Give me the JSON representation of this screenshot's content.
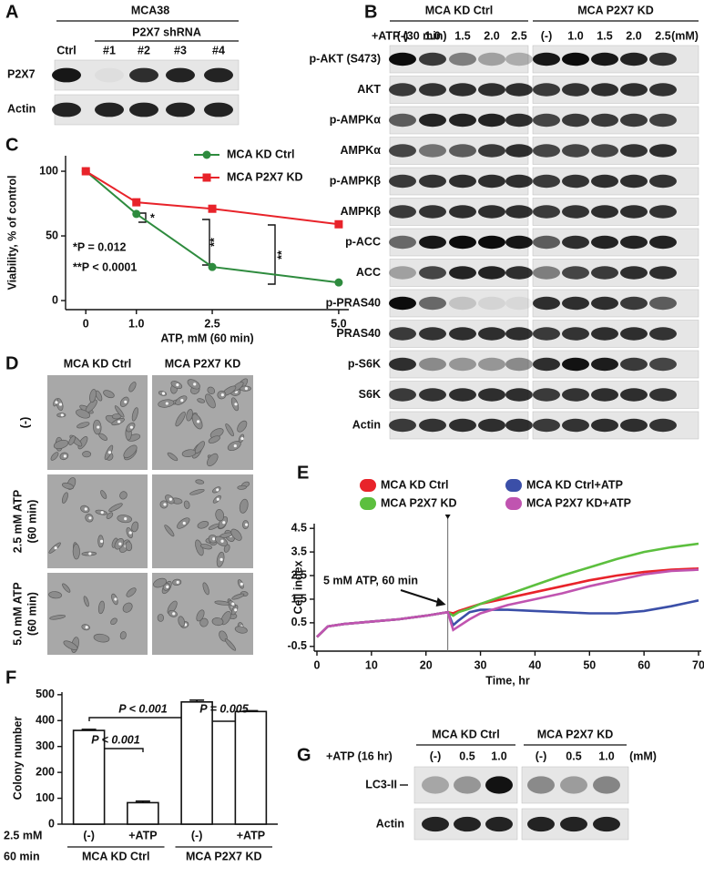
{
  "panel_a": {
    "letter": "A",
    "cell_line": "MCA38",
    "shrna_label": "P2X7 shRNA",
    "lanes": [
      "Ctrl",
      "#1",
      "#2",
      "#3",
      "#4"
    ],
    "rows": [
      "P2X7",
      "Actin"
    ]
  },
  "panel_b": {
    "letter": "B",
    "treatment": "+ATP (30 min)",
    "groups": [
      "MCA KD Ctrl",
      "MCA P2X7 KD"
    ],
    "lanes": [
      "(-)",
      "1.0",
      "1.5",
      "2.0",
      "2.5"
    ],
    "unit": "(mM)",
    "rows": [
      "p-AKT (S473)",
      "AKT",
      "p-AMPKα",
      "AMPKα",
      "p-AMPKβ",
      "AMPKβ",
      "p-ACC",
      "ACC",
      "p-PRAS40",
      "PRAS40",
      "p-S6K",
      "S6K",
      "Actin"
    ]
  },
  "chart_data": [
    {
      "type": "line",
      "letter": "C",
      "xlabel": "ATP, mM (60 min)",
      "ylabel": "Viability, % of control",
      "x": [
        0,
        1,
        2.5,
        5
      ],
      "xlim": [
        -0.4,
        5.2
      ],
      "xticks": [
        0,
        {
          "value": 1,
          "label": "1.0"
        },
        2.5,
        {
          "value": 5,
          "label": "5.0"
        }
      ],
      "ylim": [
        -7,
        112
      ],
      "yticks": [
        0,
        50,
        100
      ],
      "series": [
        {
          "name": "MCA KD Ctrl",
          "color": "#2e8b3e",
          "marker": "circle",
          "values": [
            100,
            67,
            26,
            14
          ]
        },
        {
          "name": "MCA P2X7 KD",
          "color": "#e8232a",
          "marker": "square",
          "values": [
            100,
            76,
            71,
            59
          ]
        }
      ],
      "annotations": [
        "*P = 0.012",
        "**P < 0.0001",
        "*",
        "**",
        "**"
      ]
    },
    {
      "type": "line",
      "letter": "E",
      "xlabel": "Time, hr",
      "ylabel": "Cell index",
      "x": [
        0,
        2,
        5,
        10,
        15,
        20,
        24,
        25,
        26,
        28,
        30,
        35,
        40,
        45,
        50,
        55,
        60,
        65,
        70
      ],
      "xlim": [
        -0.5,
        70.5
      ],
      "xticks": [
        0,
        10,
        20,
        30,
        40,
        50,
        60,
        70
      ],
      "ylim": [
        -0.7,
        4.7
      ],
      "yticks": [
        -0.5,
        0.5,
        1.5,
        2.5,
        3.5,
        4.5
      ],
      "marker_x": 24,
      "annotation": "5 mM ATP, 60 min",
      "series": [
        {
          "name": "MCA KD Ctrl",
          "color": "#e8232a",
          "values": [
            -0.1,
            0.35,
            0.45,
            0.55,
            0.65,
            0.8,
            0.95,
            0.9,
            1.0,
            1.15,
            1.3,
            1.55,
            1.8,
            2.05,
            2.3,
            2.5,
            2.65,
            2.75,
            2.8
          ]
        },
        {
          "name": "MCA P2X7 KD",
          "color": "#5cbf3e",
          "values": [
            -0.1,
            0.35,
            0.45,
            0.55,
            0.65,
            0.8,
            0.95,
            0.8,
            0.95,
            1.1,
            1.3,
            1.7,
            2.1,
            2.5,
            2.85,
            3.2,
            3.5,
            3.7,
            3.85
          ]
        },
        {
          "name": "MCA KD Ctrl+ATP",
          "color": "#3b4fa8",
          "values": [
            -0.1,
            0.35,
            0.45,
            0.55,
            0.65,
            0.8,
            0.95,
            0.4,
            0.6,
            0.95,
            1.05,
            1.05,
            1.0,
            0.95,
            0.9,
            0.9,
            1.0,
            1.2,
            1.45
          ]
        },
        {
          "name": "MCA P2X7 KD+ATP",
          "color": "#c054b0",
          "values": [
            -0.1,
            0.35,
            0.45,
            0.55,
            0.65,
            0.8,
            0.95,
            0.2,
            0.35,
            0.65,
            0.9,
            1.25,
            1.5,
            1.75,
            2.05,
            2.3,
            2.55,
            2.7,
            2.75
          ]
        }
      ]
    },
    {
      "type": "bar",
      "letter": "F",
      "ylabel": "Colony number",
      "categories": [
        "(-)",
        "+ATP",
        "(-)",
        "+ATP"
      ],
      "values": [
        362,
        83,
        472,
        435
      ],
      "errors": [
        4,
        6,
        7,
        3
      ],
      "color": "#ffffff",
      "ylim": [
        0,
        510
      ],
      "yticks": [
        0,
        100,
        200,
        300,
        400,
        500
      ],
      "groups": [
        "MCA KD Ctrl",
        "MCA P2X7 KD"
      ],
      "condition_label": [
        "2.5 mM",
        "60 min"
      ],
      "annotations": [
        "P < 0.001",
        "P < 0.001",
        "P = 0.005"
      ]
    }
  ],
  "panel_d": {
    "letter": "D",
    "columns": [
      "MCA KD Ctrl",
      "MCA P2X7 KD"
    ],
    "rows": [
      [
        "(-)"
      ],
      [
        "2.5 mM ATP",
        "(60 min)"
      ],
      [
        "5.0 mM ATP",
        "(60 min)"
      ]
    ]
  },
  "panel_g": {
    "letter": "G",
    "treatment": "+ATP (16 hr)",
    "groups": [
      "MCA KD Ctrl",
      "MCA P2X7 KD"
    ],
    "lanes": [
      "(-)",
      "0.5",
      "1.0"
    ],
    "unit": "(mM)",
    "rows": [
      "LC3-II",
      "Actin"
    ]
  }
}
